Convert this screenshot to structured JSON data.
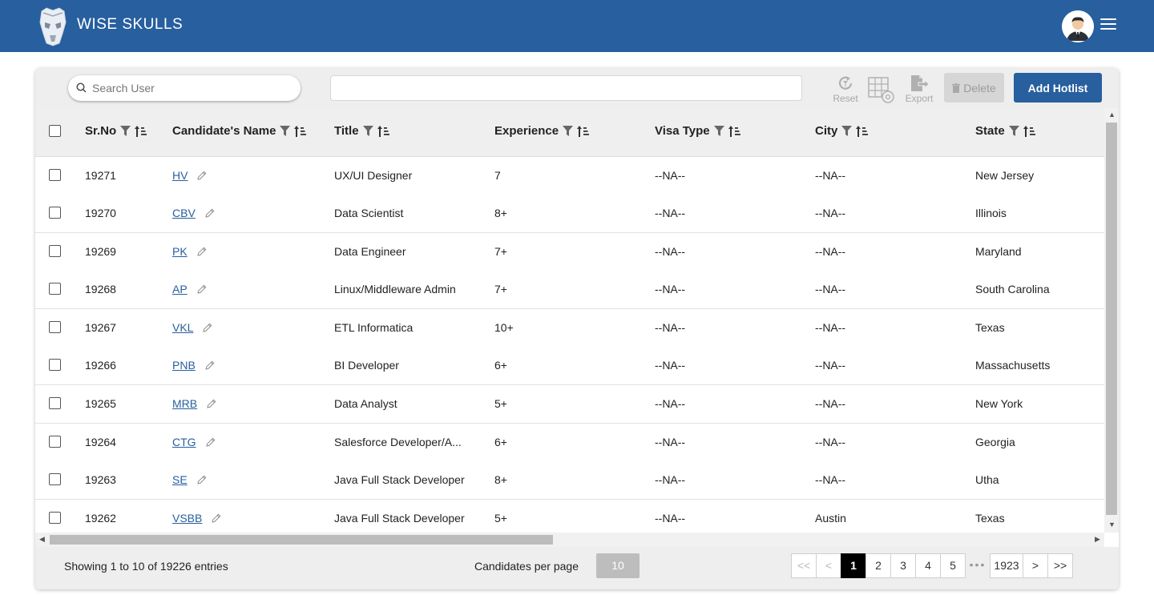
{
  "header": {
    "brand": "WISE SKULLS",
    "colors": {
      "bar": "#275f9f",
      "accent": "#275f9f"
    },
    "icons": {
      "logo": "skull-logo-icon",
      "avatar": "user-avatar-icon",
      "menu": "hamburger-menu-icon"
    }
  },
  "toolbar": {
    "search_placeholder": "Search User",
    "filter_value": "",
    "reset_label": "Reset",
    "export_label": "Export",
    "delete_label": "Delete",
    "add_hotlist_label": "Add Hotlist"
  },
  "table": {
    "columns": [
      "Sr.No",
      "Candidate's Name",
      "Title",
      "Experience",
      "Visa Type",
      "City",
      "State"
    ],
    "rows": [
      {
        "sr": "19271",
        "name": "HV",
        "title": "UX/UI Designer",
        "experience": "7",
        "visa": "--NA--",
        "city": "--NA--",
        "state": "New Jersey"
      },
      {
        "sr": "19270",
        "name": "CBV",
        "title": "Data Scientist",
        "experience": "8+",
        "visa": "--NA--",
        "city": "--NA--",
        "state": "Illinois"
      },
      {
        "sr": "19269",
        "name": "PK",
        "title": "Data Engineer",
        "experience": "7+",
        "visa": "--NA--",
        "city": "--NA--",
        "state": "Maryland"
      },
      {
        "sr": "19268",
        "name": "AP",
        "title": "Linux/Middleware Admin",
        "experience": "7+",
        "visa": "--NA--",
        "city": "--NA--",
        "state": "South Carolina"
      },
      {
        "sr": "19267",
        "name": "VKL",
        "title": "ETL Informatica",
        "experience": "10+",
        "visa": "--NA--",
        "city": "--NA--",
        "state": "Texas"
      },
      {
        "sr": "19266",
        "name": "PNB",
        "title": "BI Developer",
        "experience": "6+",
        "visa": "--NA--",
        "city": "--NA--",
        "state": "Massachusetts"
      },
      {
        "sr": "19265",
        "name": "MRB",
        "title": "Data Analyst",
        "experience": "5+",
        "visa": "--NA--",
        "city": "--NA--",
        "state": "New York"
      },
      {
        "sr": "19264",
        "name": "CTG",
        "title": "Salesforce Developer/A...",
        "experience": "6+",
        "visa": "--NA--",
        "city": "--NA--",
        "state": "Georgia"
      },
      {
        "sr": "19263",
        "name": "SE",
        "title": "Java Full Stack Developer",
        "experience": "8+",
        "visa": "--NA--",
        "city": "--NA--",
        "state": "Utha"
      },
      {
        "sr": "19262",
        "name": "VSBB",
        "title": "Java Full Stack Developer",
        "experience": "5+",
        "visa": "--NA--",
        "city": "Austin",
        "state": "Texas"
      }
    ]
  },
  "footer": {
    "showing": "Showing 1 to 10 of 19226 entries",
    "per_page_label": "Candidates per page",
    "per_page_value": "10",
    "pages": [
      "1",
      "2",
      "3",
      "4",
      "5"
    ],
    "ellipsis": "•••",
    "last_page": "1923",
    "first_symbol": "<<",
    "prev_symbol": "<",
    "next_symbol": ">",
    "last_symbol": ">>"
  }
}
